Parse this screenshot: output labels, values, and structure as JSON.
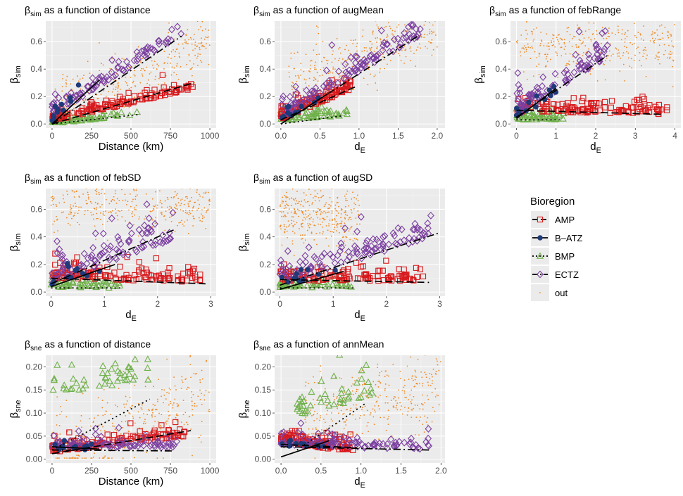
{
  "colors": {
    "panel_bg": "#ebebeb",
    "grid_major": "#ffffff",
    "AMP": "#d7191c",
    "B-ATZ": "#1f3a78",
    "BMP": "#6fb04a",
    "ECTZ": "#7b3fa0",
    "out": "#f08a24",
    "fit": "#000000"
  },
  "legend": {
    "title": "Bioregion",
    "items": [
      {
        "key": "AMP",
        "label": "AMP",
        "marker": "square",
        "line": "longdash"
      },
      {
        "key": "B-ATZ",
        "label": "B–ATZ",
        "marker": "circle",
        "line": "solid"
      },
      {
        "key": "BMP",
        "label": "BMP",
        "marker": "triangle",
        "line": "dotted"
      },
      {
        "key": "ECTZ",
        "label": "ECTZ",
        "marker": "diamond",
        "line": "dashdot"
      },
      {
        "key": "out",
        "label": "out",
        "marker": "dot",
        "line": "none"
      }
    ]
  },
  "chart_data": [
    {
      "type": "scatter",
      "title": {
        "base": "β",
        "sub": "sim",
        "rest": " as a function of distance"
      },
      "xlabel": {
        "base": "Distance (km)",
        "sub": ""
      },
      "ylabel": {
        "base": "β",
        "sub": "sim"
      },
      "xlim": [
        -40,
        1040
      ],
      "ylim": [
        -0.03,
        0.75
      ],
      "xticks": [
        0,
        250,
        500,
        750,
        1000
      ],
      "xtick_labels": [
        "0",
        "250",
        "500",
        "750",
        "1000"
      ],
      "yticks": [
        0,
        0.2,
        0.4,
        0.6
      ],
      "ytick_labels": [
        "0.0",
        "0.2",
        "0.4",
        "0.6"
      ],
      "series": [
        {
          "key": "out",
          "n": 330,
          "xr": [
            0,
            1000
          ],
          "fn": "lin",
          "a": 0.1,
          "b": 0.0005,
          "sd": 0.11,
          "seed": 11
        },
        {
          "key": "BMP",
          "n": 65,
          "xr": [
            0,
            560
          ],
          "fn": "lin",
          "a": 0.0,
          "b": 0.00012,
          "sd": 0.02,
          "seed": 12
        },
        {
          "key": "AMP",
          "n": 130,
          "xr": [
            0,
            900
          ],
          "fn": "lin",
          "a": 0.02,
          "b": 0.00026,
          "sd": 0.035,
          "seed": 13
        },
        {
          "key": "ECTZ",
          "n": 90,
          "xr": [
            0,
            820
          ],
          "fn": "lin",
          "a": 0.06,
          "b": 0.00072,
          "sd": 0.05,
          "seed": 14
        },
        {
          "key": "B-ATZ",
          "n": 12,
          "xr": [
            0,
            220
          ],
          "fn": "lin",
          "a": 0.02,
          "b": 0.0011,
          "sd": 0.05,
          "seed": 15
        }
      ],
      "fits": [
        {
          "key": "ECTZ",
          "x": [
            0,
            820
          ],
          "y": [
            0.0,
            0.64
          ]
        },
        {
          "key": "AMP",
          "x": [
            0,
            900
          ],
          "y": [
            0.0,
            0.3
          ]
        },
        {
          "key": "BMP",
          "x": [
            0,
            560
          ],
          "y": [
            0.0,
            0.07
          ]
        },
        {
          "key": "B-ATZ",
          "x": [
            0,
            300
          ],
          "y": [
            0.0,
            0.32
          ]
        }
      ]
    },
    {
      "type": "scatter",
      "title": {
        "base": "β",
        "sub": "sim",
        "rest": " as a function of augMean"
      },
      "xlabel": {
        "base": "d",
        "sub": "E"
      },
      "ylabel": {
        "base": "β",
        "sub": "sim"
      },
      "xlim": [
        -0.08,
        2.1
      ],
      "ylim": [
        -0.03,
        0.75
      ],
      "xticks": [
        0,
        0.5,
        1,
        1.5,
        2
      ],
      "xtick_labels": [
        "0.0",
        "0.5",
        "1.0",
        "1.5",
        "2.0"
      ],
      "yticks": [
        0,
        0.2,
        0.4,
        0.6
      ],
      "ytick_labels": [
        "0.0",
        "0.2",
        "0.4",
        "0.6"
      ],
      "series": [
        {
          "key": "out",
          "n": 330,
          "xr": [
            0.1,
            2.0
          ],
          "fn": "lin",
          "a": 0.28,
          "b": 0.22,
          "sd": 0.12,
          "seed": 21
        },
        {
          "key": "BMP",
          "n": 70,
          "xr": [
            0,
            0.85
          ],
          "fn": "lin",
          "a": 0.02,
          "b": 0.05,
          "sd": 0.04,
          "seed": 22
        },
        {
          "key": "AMP",
          "n": 120,
          "xr": [
            0,
            0.9
          ],
          "fn": "lin",
          "a": 0.03,
          "b": 0.25,
          "sd": 0.05,
          "seed": 23
        },
        {
          "key": "ECTZ",
          "n": 110,
          "xr": [
            0,
            1.8
          ],
          "fn": "lin",
          "a": 0.04,
          "b": 0.34,
          "sd": 0.08,
          "seed": 24
        },
        {
          "key": "B-ATZ",
          "n": 12,
          "xr": [
            0,
            0.5
          ],
          "fn": "lin",
          "a": 0.02,
          "b": 0.3,
          "sd": 0.05,
          "seed": 25
        }
      ],
      "fits": [
        {
          "key": "ECTZ",
          "x": [
            0,
            1.75
          ],
          "y": [
            0.0,
            0.64
          ]
        },
        {
          "key": "AMP",
          "x": [
            0,
            0.95
          ],
          "y": [
            0.03,
            0.27
          ]
        },
        {
          "key": "BMP",
          "x": [
            0,
            0.8
          ],
          "y": [
            0.0,
            0.06
          ]
        },
        {
          "key": "B-ATZ",
          "x": [
            0,
            0.6
          ],
          "y": [
            0.0,
            0.22
          ]
        }
      ]
    },
    {
      "type": "scatter",
      "title": {
        "base": "β",
        "sub": "sim",
        "rest": " as a function of febRange"
      },
      "xlabel": {
        "base": "d",
        "sub": "E"
      },
      "ylabel": {
        "base": "β",
        "sub": "sim"
      },
      "xlim": [
        -0.15,
        4.15
      ],
      "ylim": [
        -0.03,
        0.75
      ],
      "xticks": [
        0,
        1,
        2,
        3,
        4
      ],
      "xtick_labels": [
        "0",
        "1",
        "2",
        "3",
        "4"
      ],
      "yticks": [
        0,
        0.2,
        0.4,
        0.6
      ],
      "ytick_labels": [
        "0.0",
        "0.2",
        "0.4",
        "0.6"
      ],
      "series": [
        {
          "key": "out",
          "n": 330,
          "xr": [
            0,
            4.0
          ],
          "fn": "lin",
          "a": 0.58,
          "b": 0.0,
          "sd": 0.12,
          "seed": 31
        },
        {
          "key": "BMP",
          "n": 55,
          "xr": [
            0,
            1.2
          ],
          "fn": "lin",
          "a": 0.03,
          "b": 0.0,
          "sd": 0.04,
          "seed": 32
        },
        {
          "key": "AMP",
          "n": 130,
          "xr": [
            0,
            3.8
          ],
          "fn": "lin",
          "a": 0.09,
          "b": -0.005,
          "sd": 0.06,
          "seed": 33
        },
        {
          "key": "ECTZ",
          "n": 100,
          "xr": [
            0,
            2.3
          ],
          "fn": "lin",
          "a": 0.05,
          "b": 0.19,
          "sd": 0.1,
          "seed": 34
        },
        {
          "key": "B-ATZ",
          "n": 12,
          "xr": [
            0,
            1.0
          ],
          "fn": "lin",
          "a": 0.05,
          "b": 0.15,
          "sd": 0.05,
          "seed": 35
        }
      ],
      "fits": [
        {
          "key": "ECTZ",
          "x": [
            0,
            2.3
          ],
          "y": [
            0.05,
            0.5
          ]
        },
        {
          "key": "AMP",
          "x": [
            0,
            3.7
          ],
          "y": [
            0.1,
            0.07
          ]
        },
        {
          "key": "BMP",
          "x": [
            0,
            1.1
          ],
          "y": [
            0.03,
            0.03
          ]
        },
        {
          "key": "B-ATZ",
          "x": [
            0,
            1.0
          ],
          "y": [
            0.04,
            0.26
          ]
        }
      ]
    },
    {
      "type": "scatter",
      "title": {
        "base": "β",
        "sub": "sim",
        "rest": " as a function of febSD"
      },
      "xlabel": {
        "base": "d",
        "sub": "E"
      },
      "ylabel": {
        "base": "β",
        "sub": "sim"
      },
      "xlim": [
        -0.1,
        3.1
      ],
      "ylim": [
        -0.03,
        0.75
      ],
      "xticks": [
        0,
        1,
        2,
        3
      ],
      "xtick_labels": [
        "0",
        "1",
        "2",
        "3"
      ],
      "yticks": [
        0,
        0.2,
        0.4,
        0.6
      ],
      "ytick_labels": [
        "0.0",
        "0.2",
        "0.4",
        "0.6"
      ],
      "series": [
        {
          "key": "out",
          "n": 330,
          "xr": [
            0,
            3.0
          ],
          "fn": "lin",
          "a": 0.62,
          "b": 0.0,
          "sd": 0.1,
          "seed": 41
        },
        {
          "key": "BMP",
          "n": 55,
          "xr": [
            0,
            1.3
          ],
          "fn": "lin",
          "a": 0.03,
          "b": 0.0,
          "sd": 0.04,
          "seed": 42
        },
        {
          "key": "AMP",
          "n": 130,
          "xr": [
            0,
            2.8
          ],
          "fn": "lin",
          "a": 0.1,
          "b": -0.01,
          "sd": 0.07,
          "seed": 43
        },
        {
          "key": "ECTZ",
          "n": 100,
          "xr": [
            0,
            2.3
          ],
          "fn": "lin",
          "a": 0.06,
          "b": 0.14,
          "sd": 0.12,
          "seed": 44
        },
        {
          "key": "B-ATZ",
          "n": 12,
          "xr": [
            0,
            1.2
          ],
          "fn": "lin",
          "a": 0.05,
          "b": 0.1,
          "sd": 0.05,
          "seed": 45
        }
      ],
      "fits": [
        {
          "key": "ECTZ",
          "x": [
            0,
            2.3
          ],
          "y": [
            0.06,
            0.45
          ]
        },
        {
          "key": "AMP",
          "x": [
            0,
            2.9
          ],
          "y": [
            0.1,
            0.06
          ]
        },
        {
          "key": "BMP",
          "x": [
            0,
            1.3
          ],
          "y": [
            0.03,
            0.03
          ]
        },
        {
          "key": "B-ATZ",
          "x": [
            0,
            1.2
          ],
          "y": [
            0.04,
            0.2
          ]
        }
      ]
    },
    {
      "type": "scatter",
      "title": {
        "base": "β",
        "sub": "sim",
        "rest": " as a function of augSD"
      },
      "xlabel": {
        "base": "d",
        "sub": "E"
      },
      "ylabel": {
        "base": "β",
        "sub": "sim"
      },
      "xlim": [
        -0.1,
        3.1
      ],
      "ylim": [
        -0.03,
        0.75
      ],
      "xticks": [
        0,
        1,
        2,
        3
      ],
      "xtick_labels": [
        "0",
        "1",
        "2",
        "3"
      ],
      "yticks": [
        0,
        0.2,
        0.4,
        0.6
      ],
      "ytick_labels": [
        "0.0",
        "0.2",
        "0.4",
        "0.6"
      ],
      "series": [
        {
          "key": "out",
          "n": 330,
          "xr": [
            0,
            1.5
          ],
          "fn": "lin",
          "a": 0.55,
          "b": 0.0,
          "sd": 0.12,
          "seed": 51
        },
        {
          "key": "BMP",
          "n": 55,
          "xr": [
            0,
            1.4
          ],
          "fn": "lin",
          "a": 0.03,
          "b": 0.0,
          "sd": 0.04,
          "seed": 52
        },
        {
          "key": "AMP",
          "n": 130,
          "xr": [
            0,
            2.7
          ],
          "fn": "lin",
          "a": 0.08,
          "b": 0.0,
          "sd": 0.06,
          "seed": 53
        },
        {
          "key": "ECTZ",
          "n": 110,
          "xr": [
            0,
            2.9
          ],
          "fn": "lin",
          "a": 0.06,
          "b": 0.12,
          "sd": 0.12,
          "seed": 54
        },
        {
          "key": "B-ATZ",
          "n": 12,
          "xr": [
            0,
            1.2
          ],
          "fn": "lin",
          "a": 0.04,
          "b": 0.1,
          "sd": 0.05,
          "seed": 55
        }
      ],
      "fits": [
        {
          "key": "ECTZ",
          "x": [
            0,
            3.0
          ],
          "y": [
            0.05,
            0.43
          ]
        },
        {
          "key": "AMP",
          "x": [
            0,
            2.8
          ],
          "y": [
            0.09,
            0.07
          ]
        },
        {
          "key": "BMP",
          "x": [
            0,
            1.4
          ],
          "y": [
            0.03,
            0.03
          ]
        },
        {
          "key": "B-ATZ",
          "x": [
            0,
            1.2
          ],
          "y": [
            0.02,
            0.15
          ]
        }
      ]
    },
    {
      "type": "scatter",
      "title": {
        "base": "β",
        "sub": "sne",
        "rest": " as a function of distance"
      },
      "xlabel": {
        "base": "Distance (km)",
        "sub": ""
      },
      "ylabel": {
        "base": "β",
        "sub": "sne"
      },
      "xlim": [
        -40,
        1040
      ],
      "ylim": [
        -0.008,
        0.225
      ],
      "xticks": [
        0,
        250,
        500,
        750,
        1000
      ],
      "xtick_labels": [
        "0",
        "250",
        "500",
        "750",
        "1000"
      ],
      "yticks": [
        0,
        0.05,
        0.1,
        0.15,
        0.2
      ],
      "ytick_labels": [
        "0.00",
        "0.05",
        "0.10",
        "0.15",
        "0.20"
      ],
      "series": [
        {
          "key": "out",
          "n": 330,
          "xr": [
            0,
            1000
          ],
          "fn": "lin",
          "a": 0.02,
          "b": 0.00012,
          "sd": 0.05,
          "seed": 61
        },
        {
          "key": "BMP",
          "n": 45,
          "xr": [
            0,
            620
          ],
          "fn": "lin",
          "a": 0.14,
          "b": 5e-05,
          "sd": 0.04,
          "seed": 62
        },
        {
          "key": "AMP",
          "n": 130,
          "xr": [
            0,
            880
          ],
          "fn": "lin",
          "a": 0.015,
          "b": 4e-05,
          "sd": 0.015,
          "seed": 63
        },
        {
          "key": "ECTZ",
          "n": 90,
          "xr": [
            0,
            800
          ],
          "fn": "lin",
          "a": 0.025,
          "b": 0.0,
          "sd": 0.012,
          "seed": 64
        },
        {
          "key": "B-ATZ",
          "n": 12,
          "xr": [
            0,
            300
          ],
          "fn": "lin",
          "a": 0.02,
          "b": 0.0,
          "sd": 0.01,
          "seed": 65
        }
      ],
      "fits": [
        {
          "key": "BMP",
          "x": [
            0,
            620
          ],
          "y": [
            0.02,
            0.13
          ]
        },
        {
          "key": "AMP",
          "x": [
            0,
            880
          ],
          "y": [
            0.012,
            0.062
          ]
        },
        {
          "key": "ECTZ",
          "x": [
            0,
            760
          ],
          "y": [
            0.02,
            0.018
          ]
        },
        {
          "key": "B-ATZ",
          "x": [
            0,
            300
          ],
          "y": [
            0.027,
            0.022
          ]
        }
      ]
    },
    {
      "type": "scatter",
      "title": {
        "base": "β",
        "sub": "sne",
        "rest": " as a function of annMean"
      },
      "xlabel": {
        "base": "d",
        "sub": "E"
      },
      "ylabel": {
        "base": "β",
        "sub": "sne"
      },
      "xlim": [
        -0.08,
        2.05
      ],
      "ylim": [
        -0.008,
        0.225
      ],
      "xticks": [
        0,
        0.5,
        1,
        1.5,
        2
      ],
      "xtick_labels": [
        "0.0",
        "0.5",
        "1.0",
        "1.5",
        "2.0"
      ],
      "yticks": [
        0,
        0.05,
        0.1,
        0.15,
        0.2
      ],
      "ytick_labels": [
        "0.00",
        "0.05",
        "0.10",
        "0.15",
        "0.20"
      ],
      "series": [
        {
          "key": "out",
          "n": 330,
          "xr": [
            0.3,
            2.0
          ],
          "fn": "lin",
          "a": 0.08,
          "b": 0.04,
          "sd": 0.05,
          "seed": 71
        },
        {
          "key": "BMP",
          "n": 45,
          "xr": [
            0.2,
            1.15
          ],
          "fn": "lin",
          "a": 0.08,
          "b": 0.05,
          "sd": 0.045,
          "seed": 72
        },
        {
          "key": "AMP",
          "n": 130,
          "xr": [
            0,
            0.9
          ],
          "fn": "lin",
          "a": 0.035,
          "b": -0.02,
          "sd": 0.018,
          "seed": 73
        },
        {
          "key": "ECTZ",
          "n": 100,
          "xr": [
            0,
            1.85
          ],
          "fn": "lin",
          "a": 0.03,
          "b": -0.005,
          "sd": 0.015,
          "seed": 74
        },
        {
          "key": "B-ATZ",
          "n": 12,
          "xr": [
            0,
            0.6
          ],
          "fn": "lin",
          "a": 0.02,
          "b": 0.01,
          "sd": 0.01,
          "seed": 75
        }
      ],
      "fits": [
        {
          "key": "BMP",
          "x": [
            0.2,
            1.05
          ],
          "y": [
            0.02,
            0.12
          ]
        },
        {
          "key": "AMP",
          "x": [
            0,
            0.95
          ],
          "y": [
            0.032,
            0.025
          ]
        },
        {
          "key": "ECTZ",
          "x": [
            0,
            1.85
          ],
          "y": [
            0.027,
            0.02
          ]
        },
        {
          "key": "B-ATZ",
          "x": [
            0,
            0.6
          ],
          "y": [
            0.005,
            0.04
          ]
        }
      ]
    }
  ]
}
